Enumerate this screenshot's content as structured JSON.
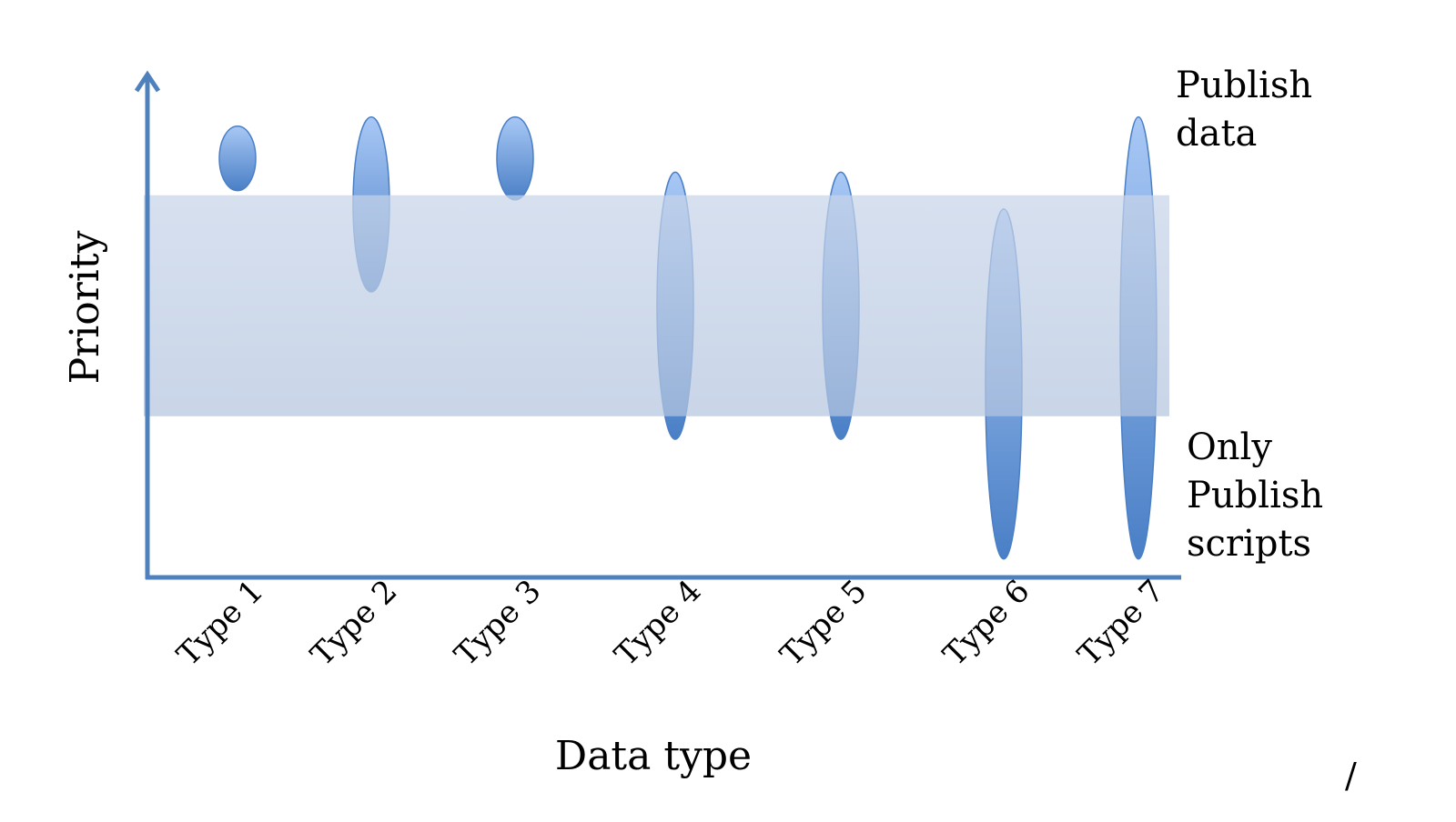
{
  "chart_data": {
    "type": "range",
    "xlabel": "Data type",
    "ylabel": "Priority",
    "categories": [
      "Type 1",
      "Type 2",
      "Type 3",
      "Type 4",
      "Type 5",
      "Type 6",
      "Type 7"
    ],
    "ranges": [
      {
        "category": "Type 1",
        "low": 0.84,
        "high": 0.98
      },
      {
        "category": "Type 2",
        "low": 0.62,
        "high": 1.0
      },
      {
        "category": "Type 3",
        "low": 0.82,
        "high": 1.0
      },
      {
        "category": "Type 4",
        "low": 0.3,
        "high": 0.88
      },
      {
        "category": "Type 5",
        "low": 0.3,
        "high": 0.88
      },
      {
        "category": "Type 6",
        "low": 0.04,
        "high": 0.8
      },
      {
        "category": "Type 7",
        "low": 0.04,
        "high": 1.0
      }
    ],
    "band": {
      "low": 0.35,
      "high": 0.83
    },
    "ylim": [
      0,
      1.1
    ],
    "annotations": {
      "top_right": [
        "Publish",
        "data"
      ],
      "bottom_right": [
        "Only",
        "Publish",
        "scripts"
      ]
    },
    "colors": {
      "axis": "#4f81bd",
      "band": "#b8c7e0",
      "ellipse_light": "#a8c8f5",
      "ellipse_dark": "#4a7fc6"
    }
  },
  "footer_mark": "/"
}
